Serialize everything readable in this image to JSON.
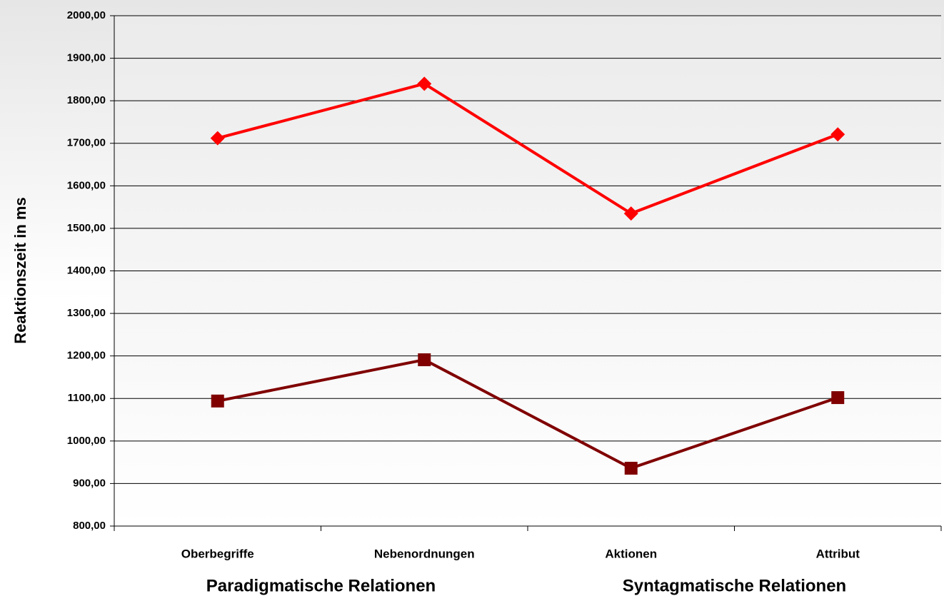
{
  "chart_data": {
    "type": "line",
    "ylabel": "Reaktionszeit in ms",
    "categories": [
      "Oberbegriffe",
      "Nebenordnungen",
      "Aktionen",
      "Attribut"
    ],
    "category_groups": [
      {
        "label": "Paradigmatische Relationen",
        "span": [
          0,
          1
        ]
      },
      {
        "label": "Syntagmatische Relationen",
        "span": [
          2,
          3
        ]
      }
    ],
    "series": [
      {
        "color": "#ff0000",
        "marker": "diamond",
        "values": [
          1712,
          1840,
          1535,
          1721
        ]
      },
      {
        "color": "#800000",
        "marker": "square",
        "values": [
          1094,
          1191,
          936,
          1102
        ]
      }
    ],
    "ylim": [
      800,
      2000
    ],
    "yticks": [
      {
        "value": 800,
        "label": "800,00"
      },
      {
        "value": 900,
        "label": "900,00"
      },
      {
        "value": 1000,
        "label": "1000,00"
      },
      {
        "value": 1100,
        "label": "1100,00"
      },
      {
        "value": 1200,
        "label": "1200,00"
      },
      {
        "value": 1300,
        "label": "1300,00"
      },
      {
        "value": 1400,
        "label": "1400,00"
      },
      {
        "value": 1500,
        "label": "1500,00"
      },
      {
        "value": 1600,
        "label": "1600,00"
      },
      {
        "value": 1700,
        "label": "1700,00"
      },
      {
        "value": 1800,
        "label": "1800,00"
      },
      {
        "value": 1900,
        "label": "1900,00"
      },
      {
        "value": 2000,
        "label": "2000,00"
      }
    ],
    "grid": true
  }
}
